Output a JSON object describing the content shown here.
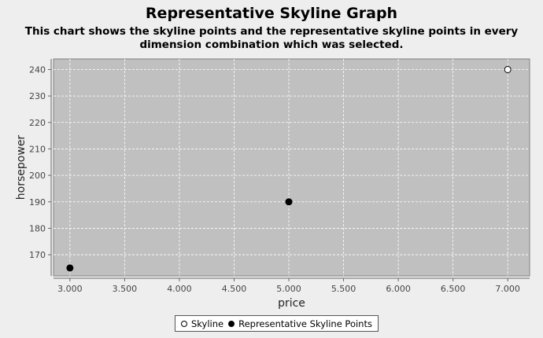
{
  "chart_data": {
    "type": "scatter",
    "title": "Representative Skyline Graph",
    "subtitle": "This chart shows the skyline points and the representative skyline points in every dimension combination which was selected.",
    "xlabel": "price",
    "ylabel": "horsepower",
    "xlim": [
      2850,
      7200
    ],
    "ylim": [
      162,
      244
    ],
    "x_ticks": [
      3000,
      3500,
      4000,
      4500,
      5000,
      5500,
      6000,
      6500,
      7000
    ],
    "x_tick_labels": [
      "3.000",
      "3.500",
      "4.000",
      "4.500",
      "5.000",
      "5.500",
      "6.000",
      "6.500",
      "7.000"
    ],
    "y_ticks": [
      170,
      180,
      190,
      200,
      210,
      220,
      230,
      240
    ],
    "y_tick_labels": [
      "170",
      "180",
      "190",
      "200",
      "210",
      "220",
      "230",
      "240"
    ],
    "grid": true,
    "legend_position": "bottom-center",
    "series": [
      {
        "name": "Skyline",
        "marker": "hollow-circle",
        "points": [
          {
            "x": 7000,
            "y": 240
          }
        ]
      },
      {
        "name": "Representative Skyline Points",
        "marker": "filled-circle",
        "points": [
          {
            "x": 3000,
            "y": 165
          },
          {
            "x": 5000,
            "y": 190
          }
        ]
      }
    ],
    "colors": {
      "plot_background": "#c0c0c0",
      "grid": "#ffffff",
      "marker": "#000000"
    }
  }
}
